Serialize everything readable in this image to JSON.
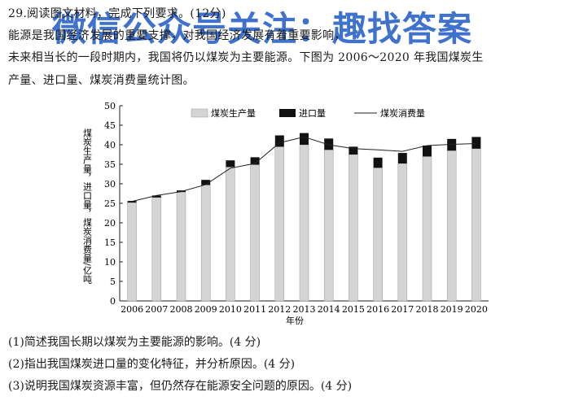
{
  "question": {
    "heading": "29.阅读图文材料，完成下列要求。(12分)",
    "paragraph_line1": "  能源是我国经济发展的重要支撑，对我国经济发展有着重要影响，",
    "paragraph_line2": "未来相当长的一段时期内，我国将仍以煤炭为主要能源。下图为 2006～2020 年我国煤炭生",
    "paragraph_line3": "产量、进口量、煤炭消费量统计图。",
    "sub_questions": [
      "(1)简述我国长期以煤炭为主要能源的影响。(4 分)",
      "(2)指出我国煤炭进口量的变化特征，并分析原因。(4 分)",
      "(3)说明我国煤炭资源丰富，但仍然存在能源安全问题的原因。(4 分)"
    ]
  },
  "watermark": "微信公众号关注：趣找答案",
  "colors": {
    "production": "#d4d4d4",
    "import": "#111111",
    "consumption": "#222222"
  },
  "chart_data": {
    "type": "bar",
    "categories": [
      "2006",
      "2007",
      "2008",
      "2009",
      "2010",
      "2011",
      "2012",
      "2013",
      "2014",
      "2015",
      "2016",
      "2017",
      "2018",
      "2019",
      "2020"
    ],
    "series": [
      {
        "name": "煤炭生产量",
        "kind": "bar-stack-bottom",
        "values": [
          25.2,
          26.5,
          27.9,
          29.7,
          34.3,
          34.9,
          39.5,
          40.0,
          38.7,
          37.5,
          34.1,
          35.2,
          37.0,
          38.5,
          39.0
        ]
      },
      {
        "name": "进口量",
        "kind": "bar-stack-top",
        "values": [
          0.4,
          0.5,
          0.4,
          1.3,
          1.7,
          1.9,
          2.9,
          3.0,
          2.9,
          2.0,
          2.6,
          2.7,
          2.8,
          3.0,
          3.0
        ]
      },
      {
        "name": "煤炭消费量",
        "kind": "line",
        "values": [
          25.5,
          27.0,
          28.0,
          29.8,
          34.0,
          35.2,
          40.5,
          42.0,
          40.0,
          39.0,
          38.7,
          38.3,
          39.8,
          40.1,
          40.3
        ]
      }
    ],
    "xlabel": "年份",
    "ylabel": "煤炭生产量，进口量，煤炭消费量/亿吨",
    "ylim": [
      0,
      50
    ],
    "yticks": [
      0,
      5,
      10,
      15,
      20,
      25,
      30,
      35,
      40,
      45,
      50
    ],
    "grid": false,
    "legend_position": "top"
  }
}
